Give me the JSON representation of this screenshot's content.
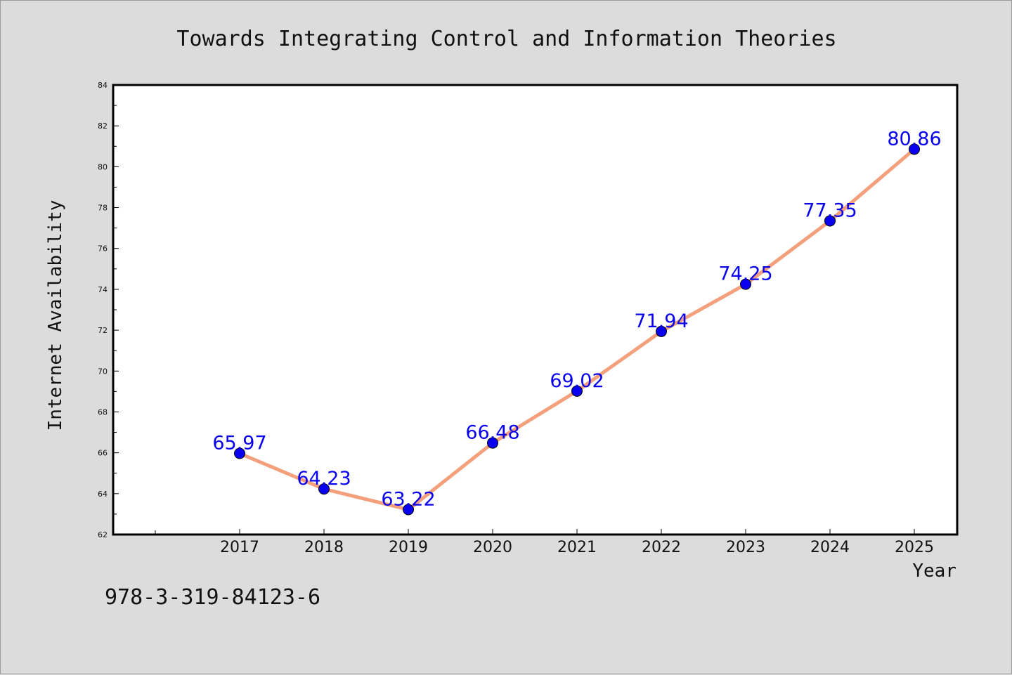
{
  "isbn": "978-3-319-84123-6",
  "chart_data": {
    "type": "line",
    "title": "Towards Integrating Control and Information Theories",
    "xlabel": "Year",
    "ylabel": "Internet Availability",
    "categories": [
      "2017",
      "2018",
      "2019",
      "2020",
      "2021",
      "2022",
      "2023",
      "2024",
      "2025"
    ],
    "series": [
      {
        "values": [
          65.97,
          64.23,
          63.22,
          66.48,
          69.02,
          71.94,
          74.25,
          77.35,
          80.86
        ],
        "labels": [
          "65.97",
          "64.23",
          "63.22",
          "66.48",
          "69.02",
          "71.94",
          "74.25",
          "77.35",
          "80.86"
        ]
      }
    ],
    "ylim": [
      62,
      84
    ],
    "yticks": [
      "62",
      "64",
      "66",
      "68",
      "70",
      "72",
      "74",
      "76",
      "78",
      "80",
      "82",
      "84"
    ],
    "grid": false,
    "legend": "none",
    "colors": {
      "line": "#f4a07c",
      "marker": "#0a00f0",
      "data_label": "#0a00f0",
      "background": "#dcdcdc",
      "plot_background": "#ffffff"
    }
  }
}
